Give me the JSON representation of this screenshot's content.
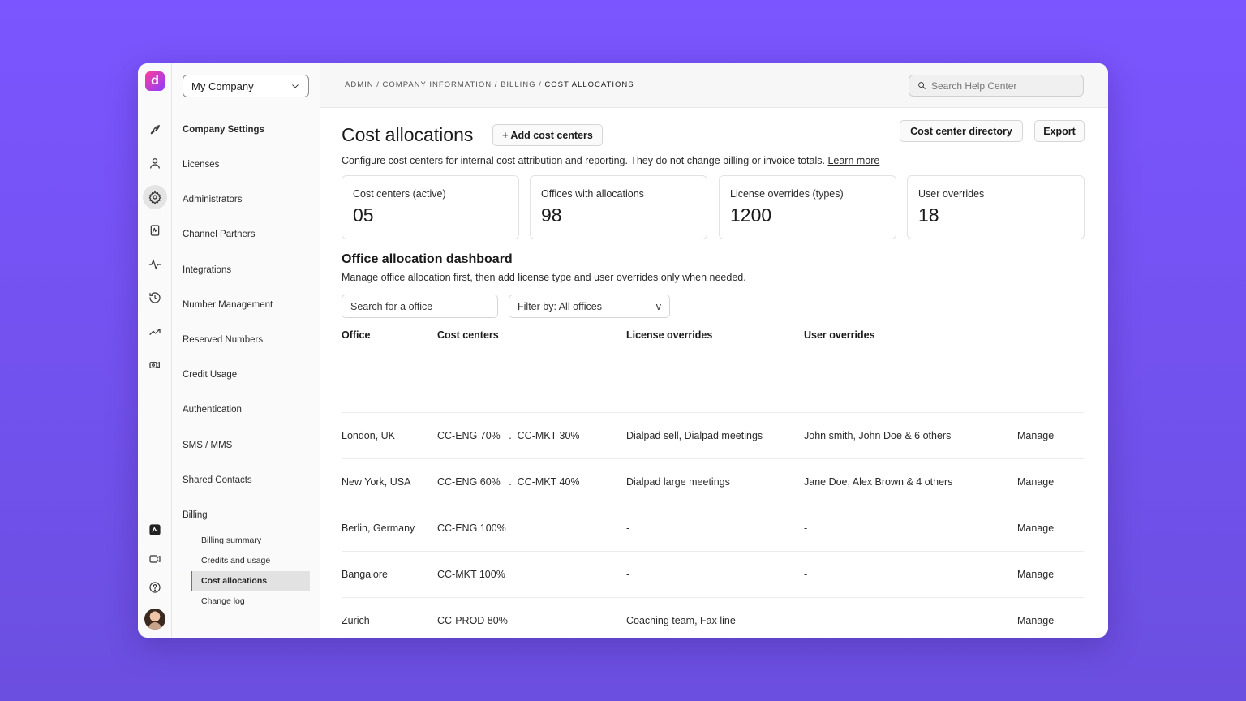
{
  "rail": {
    "logo_letter": "d",
    "icons": [
      "rocket-icon",
      "user-icon",
      "gear-icon",
      "ai-document-icon",
      "activity-icon",
      "history-icon",
      "trending-icon",
      "video-device-icon",
      "ai-assistant-icon",
      "video-icon",
      "help-icon"
    ]
  },
  "sidebar": {
    "company": "My Company",
    "items": [
      {
        "label": "Company Settings",
        "bold": true
      },
      {
        "label": "Licenses"
      },
      {
        "label": "Administrators"
      },
      {
        "label": "Channel Partners"
      },
      {
        "label": "Integrations"
      },
      {
        "label": "Number Management"
      },
      {
        "label": "Reserved Numbers"
      },
      {
        "label": "Credit Usage"
      },
      {
        "label": "Authentication"
      },
      {
        "label": "SMS / MMS"
      },
      {
        "label": "Shared Contacts"
      },
      {
        "label": "Billing"
      }
    ],
    "billing_sub": [
      {
        "label": "Billing summary"
      },
      {
        "label": "Credits and usage"
      },
      {
        "label": "Cost allocations",
        "active": true
      },
      {
        "label": "Change log"
      }
    ]
  },
  "header": {
    "breadcrumb": [
      "ADMIN",
      "COMPANY INFORMATION",
      "BILLING",
      "COST ALLOCATIONS"
    ],
    "search_placeholder": "Search Help Center"
  },
  "main": {
    "title": "Cost allocations",
    "add_button": "+ Add cost centers",
    "directory_button": "Cost center directory",
    "export_button": "Export",
    "description": "Configure cost centers for internal cost attribution and reporting. They do not change billing or invoice totals.",
    "learn_more": "Learn more",
    "stats": [
      {
        "label": "Cost centers (active)",
        "value": "05"
      },
      {
        "label": "Offices with allocations",
        "value": "98"
      },
      {
        "label": "License overrides (types)",
        "value": "1200"
      },
      {
        "label": "User overrides",
        "value": "18"
      }
    ],
    "section_title": "Office allocation dashboard",
    "section_subtitle": "Manage office allocation first, then add license type and user overrides only when needed.",
    "search_placeholder": "Search for a office",
    "filter_label": "Filter by: All offices",
    "filter_caret": "v",
    "columns": [
      "Office",
      "Cost centers",
      "License overrides",
      "User overrides"
    ],
    "rows": [
      {
        "office": "London, UK",
        "cc1": "CC-ENG 70%",
        "cc2": "CC-MKT 30%",
        "license": "Dialpad sell, Dialpad meetings",
        "users": "John smith, John Doe & 6 others",
        "action": "Manage"
      },
      {
        "office": "New York, USA",
        "cc1": "CC-ENG 60%",
        "cc2": "CC-MKT 40%",
        "license": "Dialpad large meetings",
        "users": "Jane Doe, Alex Brown & 4 others",
        "action": "Manage"
      },
      {
        "office": "Berlin, Germany",
        "cc1": "CC-ENG 100%",
        "cc2": "",
        "license": "-",
        "users": "-",
        "action": "Manage"
      },
      {
        "office": "Bangalore",
        "cc1": "CC-MKT 100%",
        "cc2": "",
        "license": "-",
        "users": "-",
        "action": "Manage"
      },
      {
        "office": "Zurich",
        "cc1": "CC-PROD 80%",
        "cc2": "",
        "license": "Coaching team, Fax line",
        "users": "-",
        "action": "Manage"
      }
    ]
  }
}
